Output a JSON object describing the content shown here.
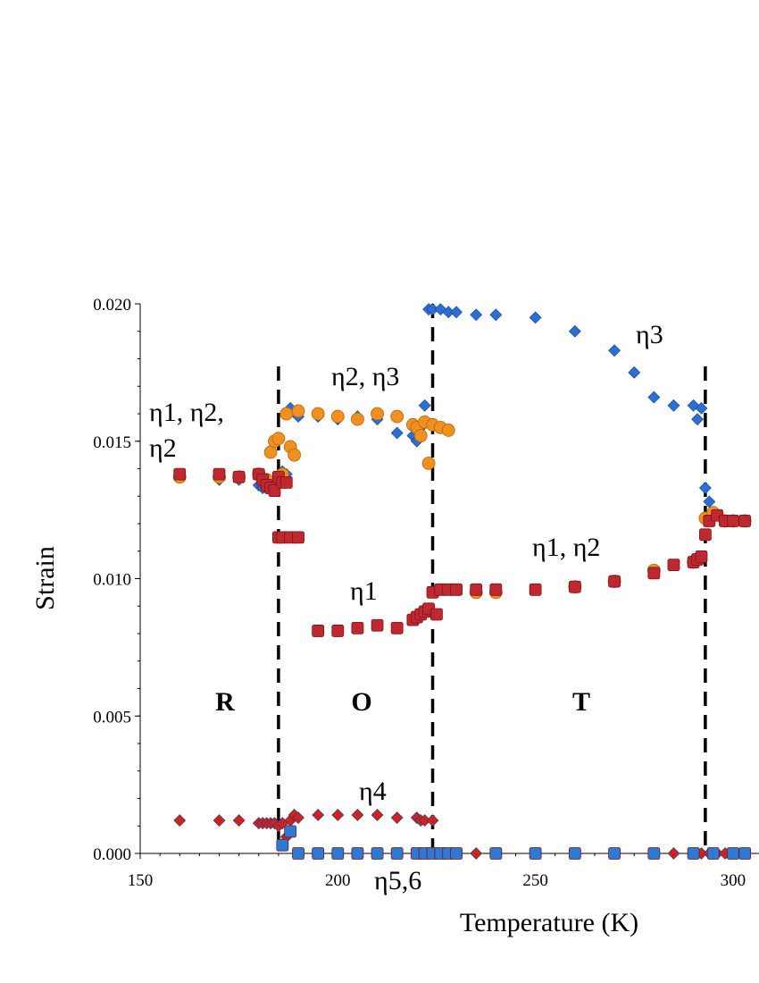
{
  "chart_data": {
    "type": "scatter",
    "xlabel": "Temperature (K)",
    "ylabel": "Strain",
    "xlim": [
      150,
      305
    ],
    "ylim": [
      0,
      0.02
    ],
    "x_ticks": [
      "150",
      "200",
      "250",
      "300"
    ],
    "y_ticks": [
      "0.000",
      "0.005",
      "0.010",
      "0.015",
      "0.020"
    ],
    "phase_boundaries": [
      185,
      224,
      293
    ],
    "phases": [
      "R",
      "O",
      "T"
    ],
    "annotations": [
      "η1, η2,",
      "η2",
      "η2, η3",
      "η3",
      "η1, η2",
      "η1",
      "η4",
      "η5,6"
    ],
    "colors": {
      "blue_diamond": "#2a6fd6",
      "orange_circle": "#f0901e",
      "red_square": "#c0282f",
      "red_diamond": "#cc2222",
      "blue_square": "#2a7ad6"
    },
    "series": [
      {
        "marker": "diamond",
        "color": "#2a6fd6",
        "x": [
          160,
          170,
          175,
          180,
          181,
          182,
          183,
          184,
          185,
          186,
          187,
          188,
          190,
          195,
          200,
          205,
          210,
          215,
          219,
          220,
          221,
          222,
          223,
          224,
          226,
          228,
          230,
          235,
          240,
          250,
          260,
          270,
          275,
          280,
          285,
          290,
          291,
          292,
          293,
          294,
          295
        ],
        "y": [
          0.0137,
          0.0136,
          0.0136,
          0.0134,
          0.0133,
          0.0134,
          0.0135,
          0.0136,
          0.0137,
          0.0139,
          0.0138,
          0.0162,
          0.0159,
          0.0159,
          0.0158,
          0.0159,
          0.0158,
          0.0153,
          0.0152,
          0.015,
          0.0155,
          0.0163,
          0.0198,
          0.0198,
          0.0198,
          0.0197,
          0.0197,
          0.0196,
          0.0196,
          0.0195,
          0.019,
          0.0183,
          0.0175,
          0.0166,
          0.0163,
          0.0163,
          0.0158,
          0.0162,
          0.0133,
          0.0128,
          0.0124
        ]
      },
      {
        "marker": "circle",
        "color": "#f0901e",
        "x": [
          160,
          170,
          175,
          180,
          182,
          183,
          184,
          185,
          186,
          187,
          188,
          189,
          190,
          195,
          200,
          205,
          210,
          215,
          219,
          220,
          221,
          222,
          223,
          224,
          226,
          228,
          235,
          240,
          260,
          270,
          280,
          290,
          293,
          295,
          298,
          300,
          303
        ],
        "y": [
          0.0137,
          0.0137,
          0.0137,
          0.0138,
          0.0136,
          0.0146,
          0.015,
          0.0151,
          0.0138,
          0.016,
          0.0148,
          0.0145,
          0.0161,
          0.016,
          0.0159,
          0.0158,
          0.016,
          0.0159,
          0.0156,
          0.0155,
          0.0152,
          0.0157,
          0.0142,
          0.0156,
          0.0155,
          0.0154,
          0.0095,
          0.0095,
          0.0097,
          0.0099,
          0.0103,
          0.0106,
          0.0122,
          0.0124,
          0.0121,
          0.0121,
          0.0121
        ]
      },
      {
        "marker": "square",
        "color": "#c0282f",
        "x": [
          160,
          170,
          175,
          180,
          181,
          182,
          183,
          184,
          185,
          186,
          187,
          185,
          186,
          188,
          190,
          195,
          200,
          205,
          210,
          215,
          219,
          220,
          221,
          222,
          223,
          224,
          225,
          226,
          228,
          230,
          235,
          240,
          250,
          260,
          270,
          280,
          285,
          290,
          291,
          292,
          293,
          294,
          296,
          298,
          300,
          303
        ],
        "y": [
          0.0138,
          0.0138,
          0.0137,
          0.0138,
          0.0136,
          0.0134,
          0.0133,
          0.0132,
          0.0137,
          0.0135,
          0.0135,
          0.0115,
          0.0115,
          0.0115,
          0.0115,
          0.0081,
          0.0081,
          0.0082,
          0.0083,
          0.0082,
          0.0085,
          0.0086,
          0.0087,
          0.0088,
          0.0089,
          0.0095,
          0.0087,
          0.0096,
          0.0096,
          0.0096,
          0.0096,
          0.0096,
          0.0096,
          0.0097,
          0.0099,
          0.0102,
          0.0105,
          0.0106,
          0.0107,
          0.0108,
          0.0116,
          0.0121,
          0.0123,
          0.0121,
          0.0121,
          0.0121
        ]
      },
      {
        "marker": "diamond",
        "color": "#cc2222",
        "x": [
          160,
          170,
          175,
          180,
          181,
          182,
          183,
          184,
          185,
          186,
          187,
          188,
          189,
          190,
          195,
          200,
          205,
          210,
          215,
          220,
          221,
          222,
          224,
          226,
          228,
          230,
          235,
          240,
          250,
          260,
          270,
          280,
          285,
          290,
          292,
          294,
          296,
          298,
          300,
          303
        ],
        "y": [
          0.0012,
          0.0012,
          0.0012,
          0.0011,
          0.0011,
          0.0011,
          0.0011,
          0.0011,
          0.001,
          0.0011,
          0.0006,
          0.0012,
          0.0014,
          0.0013,
          0.0014,
          0.0014,
          0.0014,
          0.0014,
          0.0013,
          0.0013,
          0.0012,
          0.0012,
          0.0012,
          0.0,
          0.0,
          0.0,
          0.0,
          0.0,
          0.0,
          0.0,
          0.0,
          0.0,
          0.0,
          0.0,
          0.0,
          0.0,
          0.0,
          0.0,
          0.0,
          0.0
        ]
      },
      {
        "marker": "square",
        "color": "#2a7ad6",
        "x": [
          186,
          188,
          190,
          195,
          200,
          205,
          210,
          215,
          220,
          222,
          224,
          226,
          228,
          230,
          240,
          250,
          260,
          270,
          280,
          290,
          295,
          300,
          303
        ],
        "y": [
          0.0003,
          0.0008,
          0.0,
          0.0,
          0.0,
          0.0,
          0.0,
          0.0,
          0.0,
          0.0,
          0.0,
          0.0,
          0.0,
          0.0,
          0.0,
          0.0,
          0.0,
          0.0,
          0.0,
          0.0,
          0.0,
          0.0,
          0.0
        ]
      }
    ]
  }
}
